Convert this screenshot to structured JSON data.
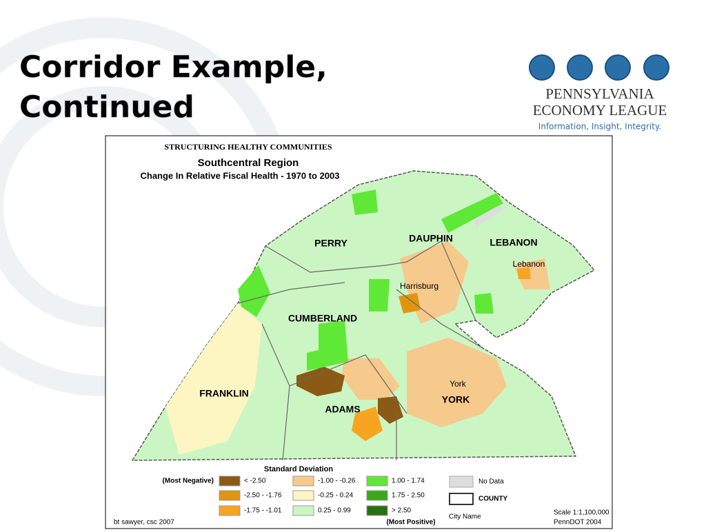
{
  "slide": {
    "title_lines": [
      "Corridor Example,",
      "Continued"
    ]
  },
  "logo": {
    "name_lines": [
      "PENNSYLVANIA",
      "ECONOMY LEAGUE"
    ],
    "tagline": "Information, Insight, Integrity."
  },
  "map": {
    "header": "STRUCTURING HEALTHY COMMUNITIES",
    "title": "Southcentral Region",
    "subtitle": "Change In Relative Fiscal Health - 1970 to 2003",
    "counties": [
      "PERRY",
      "DAUPHIN",
      "LEBANON",
      "CUMBERLAND",
      "FRANKLIN",
      "ADAMS",
      "YORK"
    ],
    "cities": [
      "Harrisburg",
      "Lebanon",
      "York"
    ],
    "legend": {
      "title": "Standard Deviation",
      "most_negative": "(Most Negative)",
      "most_positive": "(Most Positive)",
      "classes": [
        {
          "label": "< -2.50",
          "color": "#8b5a14"
        },
        {
          "label": "-2.50 - -1.76",
          "color": "#e0950f"
        },
        {
          "label": "-1.75 - -1.01",
          "color": "#f7a520"
        },
        {
          "label": "-1.00 - -0.26",
          "color": "#f6c98c"
        },
        {
          "label": "-0.25 - 0.24",
          "color": "#fdf5c2"
        },
        {
          "label": "0.25 - 0.99",
          "color": "#ccf5c4"
        },
        {
          "label": "1.00 - 1.74",
          "color": "#5fe836"
        },
        {
          "label": "1.75 - 2.50",
          "color": "#3aa818"
        },
        {
          "label": "> 2.50",
          "color": "#2a7010"
        }
      ],
      "no_data": "No Data",
      "county": "COUNTY",
      "city_name": "City Name"
    },
    "credit": "bt sawyer, csc 2007",
    "scale": "Scale 1:1,100,000",
    "source": "PennDOT 2004"
  }
}
